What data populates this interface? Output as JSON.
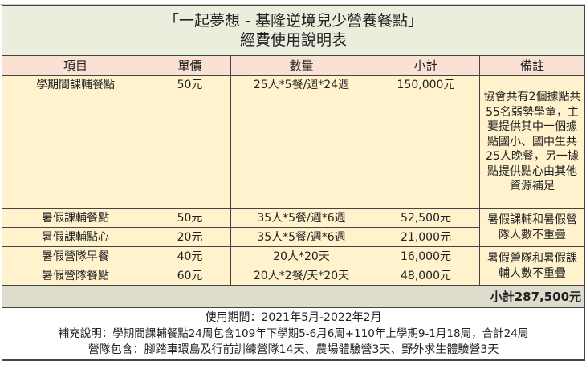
{
  "title": {
    "line1": "「一起夢想 - 基隆逆境兒少營養餐點」",
    "line2": "經費使用說明表"
  },
  "headers": [
    "項目",
    "單價",
    "數量",
    "小計",
    "備註"
  ],
  "rows": [
    {
      "item": "學期間課輔餐點",
      "price": "50元",
      "qty": "25人*5餐/週*24週",
      "subtotal": "150,000元"
    },
    {
      "item": "暑假課輔餐點",
      "price": "50元",
      "qty": "35人*5餐/週*6週",
      "subtotal": "52,500元"
    },
    {
      "item": "暑假課輔點心",
      "price": "20元",
      "qty": "35人*5餐/週*6週",
      "subtotal": "21,000元"
    },
    {
      "item": "暑假營隊早餐",
      "price": "40元",
      "qty": "20人*20天",
      "subtotal": "16,000元"
    },
    {
      "item": "暑假營隊餐點",
      "price": "60元",
      "qty": "20人*2餐/天*20天",
      "subtotal": "48,000元"
    }
  ],
  "notes": [
    "協會共有2個據點共55名弱勢學童，主要提供其中一個據點國小、國中生共25人晚餐，另一據點提供點心由其他資源補足",
    "暑假課輔和暑假營隊人數不重疊",
    "暑假營隊和暑假課輔人數不重疊"
  ],
  "total": "小計287,500元",
  "footer": {
    "period": "使用期間：2021年5月-2022年2月",
    "supplement": "補充說明：學期間課輔餐點24周包含109年下學期5-6月6周+110年上學期9-1月18周，合計24周",
    "camp": "營隊包含：腳踏車環島及行前訓練營隊14天、農場體驗營3天、野外求生體驗營3天"
  }
}
